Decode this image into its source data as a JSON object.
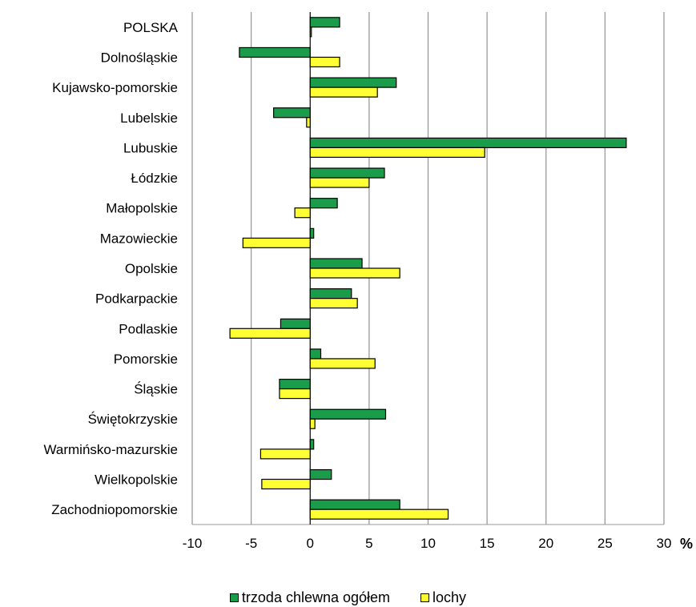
{
  "chart_data": {
    "type": "bar",
    "orientation": "horizontal",
    "categories": [
      "POLSKA",
      "Dolnośląskie",
      "Kujawsko-pomorskie",
      "Lubelskie",
      "Lubuskie",
      "Łódzkie",
      "Małopolskie",
      "Mazowieckie",
      "Opolskie",
      "Podkarpackie",
      "Podlaskie",
      "Pomorskie",
      "Śląskie",
      "Świętokrzyskie",
      "Warmińsko-mazurskie",
      "Wielkopolskie",
      "Zachodniopomorskie"
    ],
    "series": [
      {
        "name": "trzoda chlewna ogółem",
        "color": "#1a9c4a",
        "values": [
          2.5,
          -6.0,
          7.3,
          -3.1,
          26.8,
          6.3,
          2.3,
          0.3,
          4.4,
          3.5,
          -2.5,
          0.9,
          -2.6,
          6.4,
          0.3,
          1.8,
          7.6
        ]
      },
      {
        "name": "lochy",
        "color": "#ffff33",
        "values": [
          0.1,
          2.5,
          5.7,
          -0.3,
          14.8,
          5.0,
          -1.3,
          -5.7,
          7.6,
          4.0,
          -6.8,
          5.5,
          -2.6,
          0.4,
          -4.2,
          -4.1,
          11.7
        ]
      }
    ],
    "xlim": [
      -10,
      30
    ],
    "xticks": [
      -10,
      -5,
      0,
      5,
      10,
      15,
      20,
      25,
      30
    ],
    "xlabel": "%",
    "grid": "vertical",
    "legend": "bottom"
  }
}
